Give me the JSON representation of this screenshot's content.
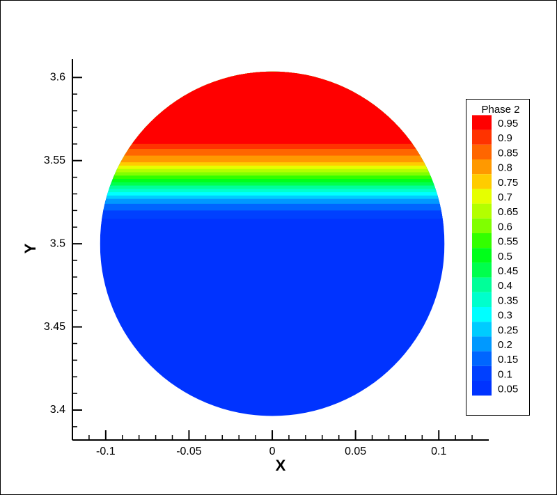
{
  "chart_data": {
    "type": "contour",
    "xlabel": "X",
    "ylabel": "Y",
    "xlim": [
      -0.12,
      0.13
    ],
    "ylim": [
      3.382,
      3.611
    ],
    "xticks": [
      -0.1,
      -0.05,
      0,
      0.05,
      0.1
    ],
    "yticks": [
      3.4,
      3.45,
      3.5,
      3.55,
      3.6
    ],
    "xminorticks": [
      -0.11,
      -0.09,
      -0.08,
      -0.07,
      -0.06,
      -0.04,
      -0.03,
      -0.02,
      -0.01,
      0.01,
      0.02,
      0.03,
      0.04,
      0.06,
      0.07,
      0.08,
      0.09,
      0.11,
      0.12
    ],
    "yminorticks": [
      3.39,
      3.41,
      3.42,
      3.43,
      3.44,
      3.46,
      3.47,
      3.48,
      3.49,
      3.51,
      3.52,
      3.53,
      3.54,
      3.56,
      3.57,
      3.58,
      3.59
    ],
    "domain": {
      "center": [
        0,
        3.5
      ],
      "radius": 0.1034
    },
    "legend_title": "Phase 2",
    "levels": [
      0.95,
      0.9,
      0.85,
      0.8,
      0.75,
      0.7,
      0.65,
      0.6,
      0.55,
      0.5,
      0.45,
      0.4,
      0.35,
      0.3,
      0.25,
      0.2,
      0.15,
      0.1,
      0.05
    ],
    "colors": [
      "#ff0000",
      "#ff3300",
      "#ff6600",
      "#ff9900",
      "#ffcc00",
      "#e6ff00",
      "#b3ff00",
      "#80ff00",
      "#33ff00",
      "#00ff1a",
      "#00ff4d",
      "#00ff99",
      "#00ffcc",
      "#00ffff",
      "#00ccff",
      "#0099ff",
      "#0066ff",
      "#0040ff",
      "#0033ff"
    ],
    "contour_y": [
      3.56,
      3.557,
      3.553,
      3.549,
      3.547,
      3.545,
      3.543,
      3.541,
      3.539,
      3.537,
      3.535,
      3.533,
      3.531,
      3.529,
      3.527,
      3.524,
      3.52,
      3.515,
      3.51
    ]
  }
}
